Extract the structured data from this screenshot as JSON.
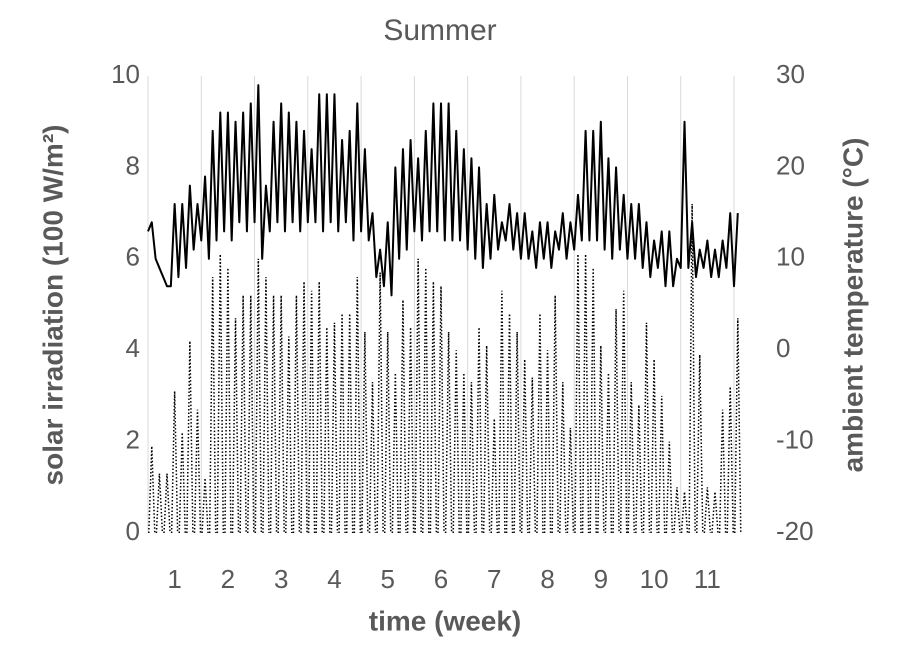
{
  "chart_data": {
    "type": "line",
    "title": "Summer",
    "x_label": "time (week)",
    "y_label": "solar irradiation (100 W/m²)",
    "y2_label": "ambient temperature (°C)",
    "xlim": [
      0,
      11.15
    ],
    "xticks": [
      {
        "value": 0.5,
        "label": "1"
      },
      {
        "value": 1.5,
        "label": "2"
      },
      {
        "value": 2.5,
        "label": "3"
      },
      {
        "value": 3.5,
        "label": "4"
      },
      {
        "value": 4.5,
        "label": "5"
      },
      {
        "value": 5.5,
        "label": "6"
      },
      {
        "value": 6.5,
        "label": "7"
      },
      {
        "value": 7.5,
        "label": "8"
      },
      {
        "value": 8.5,
        "label": "9"
      },
      {
        "value": 9.5,
        "label": "10"
      },
      {
        "value": 10.5,
        "label": "11"
      }
    ],
    "xgrid": [
      0,
      1,
      2,
      3,
      4,
      5,
      6,
      7,
      8,
      9,
      10,
      11
    ],
    "ylim": [
      0,
      10
    ],
    "yticks": [
      0,
      2,
      4,
      6,
      8,
      10
    ],
    "y2lim": [
      -20,
      30
    ],
    "y2ticks": [
      -20,
      -10,
      0,
      10,
      20,
      30
    ],
    "series": [
      {
        "axis": "y",
        "style": "dotted",
        "color": "#000000",
        "x": [
          0.071,
          0.214,
          0.357,
          0.5,
          0.643,
          0.786,
          0.929,
          1.071,
          1.214,
          1.357,
          1.5,
          1.643,
          1.786,
          1.929,
          2.071,
          2.214,
          2.357,
          2.5,
          2.643,
          2.786,
          2.929,
          3.071,
          3.214,
          3.357,
          3.5,
          3.643,
          3.786,
          3.929,
          4.071,
          4.214,
          4.357,
          4.5,
          4.643,
          4.786,
          4.929,
          5.071,
          5.214,
          5.357,
          5.5,
          5.643,
          5.786,
          5.929,
          6.071,
          6.214,
          6.357,
          6.5,
          6.643,
          6.786,
          6.929,
          7.071,
          7.214,
          7.357,
          7.5,
          7.643,
          7.786,
          7.929,
          8.071,
          8.214,
          8.357,
          8.5,
          8.643,
          8.786,
          8.929,
          9.071,
          9.214,
          9.357,
          9.5,
          9.643,
          9.786,
          9.929,
          10.071,
          10.214,
          10.357,
          10.5,
          10.643,
          10.786,
          10.929,
          11.071
        ],
        "values": [
          1.9,
          1.3,
          1.3,
          3.1,
          2.2,
          4.2,
          2.7,
          1.2,
          5.6,
          6.1,
          5.8,
          4.7,
          5.2,
          5.2,
          6.0,
          5.6,
          5.2,
          5.2,
          4.3,
          5.2,
          5.5,
          5.3,
          5.5,
          4.5,
          4.6,
          4.8,
          4.8,
          5.6,
          4.4,
          3.3,
          5.7,
          4.4,
          3.5,
          5.1,
          4.5,
          6.0,
          5.8,
          5.5,
          5.4,
          4.4,
          4.0,
          3.5,
          3.3,
          4.5,
          4.1,
          2.5,
          5.3,
          4.8,
          4.4,
          3.8,
          3.4,
          4.8,
          4.0,
          5.2,
          3.3,
          2.3,
          6.1,
          6.1,
          5.8,
          4.1,
          3.5,
          4.9,
          5.3,
          3.3,
          2.8,
          4.6,
          3.8,
          3.0,
          2.0,
          1.0,
          0.9,
          7.2,
          3.9,
          1.0,
          0.9,
          2.7,
          3.2,
          4.7
        ]
      },
      {
        "axis": "y2",
        "style": "solid",
        "color": "#000000",
        "x": [
          0,
          0.071,
          0.143,
          0.214,
          0.286,
          0.357,
          0.429,
          0.5,
          0.571,
          0.643,
          0.714,
          0.786,
          0.857,
          0.929,
          1,
          1.071,
          1.143,
          1.214,
          1.286,
          1.357,
          1.429,
          1.5,
          1.571,
          1.643,
          1.714,
          1.786,
          1.857,
          1.929,
          2,
          2.071,
          2.143,
          2.214,
          2.286,
          2.357,
          2.429,
          2.5,
          2.571,
          2.643,
          2.714,
          2.786,
          2.857,
          2.929,
          3,
          3.071,
          3.143,
          3.214,
          3.286,
          3.357,
          3.429,
          3.5,
          3.571,
          3.643,
          3.714,
          3.786,
          3.857,
          3.929,
          4,
          4.071,
          4.143,
          4.214,
          4.286,
          4.357,
          4.429,
          4.5,
          4.571,
          4.643,
          4.714,
          4.786,
          4.857,
          4.929,
          5,
          5.071,
          5.143,
          5.214,
          5.286,
          5.357,
          5.429,
          5.5,
          5.571,
          5.643,
          5.714,
          5.786,
          5.857,
          5.929,
          6,
          6.071,
          6.143,
          6.214,
          6.286,
          6.357,
          6.429,
          6.5,
          6.571,
          6.643,
          6.714,
          6.786,
          6.857,
          6.929,
          7,
          7.071,
          7.143,
          7.214,
          7.286,
          7.357,
          7.429,
          7.5,
          7.571,
          7.643,
          7.714,
          7.786,
          7.857,
          7.929,
          8,
          8.071,
          8.143,
          8.214,
          8.286,
          8.357,
          8.429,
          8.5,
          8.571,
          8.643,
          8.714,
          8.786,
          8.857,
          8.929,
          9,
          9.071,
          9.143,
          9.214,
          9.286,
          9.357,
          9.429,
          9.5,
          9.571,
          9.643,
          9.714,
          9.786,
          9.857,
          9.929,
          10,
          10.071,
          10.143,
          10.214,
          10.286,
          10.357,
          10.429,
          10.5,
          10.571,
          10.643,
          10.714,
          10.786,
          10.857,
          10.929,
          11,
          11.071
        ],
        "values": [
          13,
          14,
          10,
          9,
          8,
          7,
          7,
          16,
          8,
          16,
          9,
          18,
          11,
          16,
          12,
          19,
          10,
          24,
          12,
          26,
          13,
          26,
          12,
          25,
          14,
          26,
          13,
          27,
          14,
          29,
          10,
          18,
          13,
          25,
          14,
          27,
          13,
          26,
          14,
          25,
          13,
          24,
          14,
          22,
          14,
          28,
          13,
          28,
          14,
          28,
          13,
          23,
          14,
          24,
          12,
          27,
          13,
          22,
          12,
          15,
          8,
          11,
          7,
          14,
          6,
          20,
          10,
          22,
          11,
          23,
          13,
          21,
          12,
          24,
          13,
          27,
          13,
          27,
          12,
          27,
          12,
          24,
          12,
          22,
          11,
          21,
          10,
          20,
          9,
          16,
          10,
          17,
          11,
          14,
          12,
          16,
          11,
          15,
          10,
          15,
          10,
          13,
          9,
          14,
          10,
          14,
          9,
          13,
          11,
          15,
          10,
          14,
          11,
          17,
          12,
          24,
          12,
          24,
          12,
          25,
          11,
          21,
          10,
          20,
          11,
          17,
          10,
          16,
          10,
          16,
          9,
          14,
          8,
          12,
          9,
          13,
          7,
          13,
          7,
          10,
          9,
          25,
          9,
          14,
          8,
          11,
          9,
          12,
          8,
          11,
          8,
          12,
          9,
          15,
          7,
          15
        ]
      }
    ]
  }
}
